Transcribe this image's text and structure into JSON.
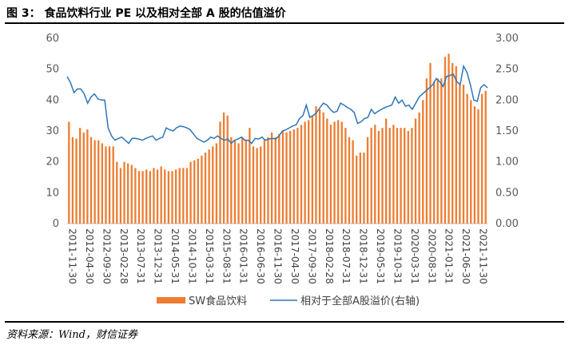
{
  "header": {
    "title": "图 3：  食品饮料行业 PE 以及相对全部 A 股的估值溢价"
  },
  "footer": {
    "source": "资料来源：Wind，财信证券"
  },
  "chart_data": {
    "type": "bar",
    "title": "",
    "xlabel": "",
    "ylabel": "",
    "ylim": [
      0,
      60
    ],
    "y2lim": [
      0,
      3
    ],
    "y_ticks": [
      "0",
      "10",
      "20",
      "30",
      "40",
      "50",
      "60"
    ],
    "y2_ticks": [
      "0.00",
      "0.50",
      "1.00",
      "1.50",
      "2.00",
      "2.50",
      "3.00"
    ],
    "x_tick_labels": [
      "2011-11-30",
      "2012-04-30",
      "2012-09-30",
      "2013-02-28",
      "2013-07-31",
      "2013-12-31",
      "2014-05-31",
      "2014-10-31",
      "2015-03-31",
      "2015-08-31",
      "2016-01-31",
      "2016-06-30",
      "2016-11-30",
      "2017-04-30",
      "2017-09-30",
      "2018-02-28",
      "2018-07-31",
      "2018-12-31",
      "2019-05-31",
      "2019-10-31",
      "2020-03-31",
      "2020-08-31",
      "2021-01-31",
      "2021-06-30",
      "2021-11-30"
    ],
    "legend": {
      "position": "bottom"
    },
    "series": [
      {
        "name": "SW食品饮料",
        "type": "bar",
        "axis": "left",
        "color": "#ED7D31",
        "values": [
          33,
          28,
          27.5,
          31,
          29.5,
          30.5,
          28,
          27,
          27,
          26,
          25,
          25,
          25,
          20,
          18,
          20,
          19.5,
          19,
          18,
          17,
          17,
          17.5,
          17,
          18,
          17.5,
          18.5,
          17.5,
          17,
          17,
          17.5,
          18,
          18,
          18,
          20,
          20.5,
          21,
          22,
          23,
          24,
          25,
          26,
          33,
          36,
          35,
          28,
          27,
          26,
          28,
          27,
          31,
          25,
          24.5,
          25,
          27,
          28,
          29.5,
          28,
          29,
          30,
          29.5,
          30,
          30.5,
          31,
          32,
          33,
          33.5,
          35,
          38,
          37,
          36,
          34,
          32,
          33,
          33.5,
          33,
          31,
          28,
          27,
          22,
          23,
          23,
          28,
          31,
          32,
          30,
          31,
          34,
          31,
          32,
          31,
          31,
          31,
          30,
          31,
          34,
          36,
          40,
          47,
          52,
          46,
          47,
          47,
          54,
          55,
          52,
          51,
          45,
          45,
          42,
          40,
          38,
          37,
          42,
          43
        ]
      },
      {
        "name": "相对于全部A股溢价(右轴)",
        "type": "line",
        "axis": "right",
        "color": "#2E75B6",
        "values": [
          2.38,
          2.28,
          2.12,
          2.18,
          2.18,
          2.1,
          1.95,
          2.05,
          2.1,
          2.02,
          2,
          2,
          1.55,
          1.42,
          1.35,
          1.38,
          1.4,
          1.35,
          1.3,
          1.38,
          1.38,
          1.37,
          1.35,
          1.38,
          1.4,
          1.42,
          1.35,
          1.38,
          1.4,
          1.55,
          1.52,
          1.5,
          1.55,
          1.58,
          1.57,
          1.55,
          1.52,
          1.45,
          1.38,
          1.35,
          1.32,
          1.35,
          1.4,
          1.38,
          1.42,
          1.38,
          1.35,
          1.37,
          1.3,
          1.35,
          1.37,
          1.4,
          1.35,
          1.35,
          1.3,
          1.38,
          1.37,
          1.4,
          1.35,
          1.37,
          1.38,
          1.37,
          1.42,
          1.5,
          1.52,
          1.55,
          1.58,
          1.6,
          1.7,
          1.75,
          1.92,
          1.72,
          1.75,
          1.8,
          1.88,
          1.95,
          1.92,
          1.85,
          1.8,
          1.82,
          1.95,
          1.92,
          1.88,
          1.85,
          1.8,
          1.62,
          1.65,
          1.7,
          1.72,
          1.85,
          1.78,
          1.82,
          1.85,
          1.88,
          1.9,
          1.92,
          2.05,
          1.95,
          2.0,
          1.9,
          1.92,
          1.85,
          1.95,
          2.05,
          2.1,
          2.15,
          2.2,
          2.25,
          2.35,
          2.3,
          2.22,
          2.38,
          2.4,
          2.42,
          2.3,
          2.25,
          2.55,
          2.45,
          2.25,
          2.0,
          1.98,
          2.2,
          2.25,
          2.2
        ]
      }
    ]
  }
}
